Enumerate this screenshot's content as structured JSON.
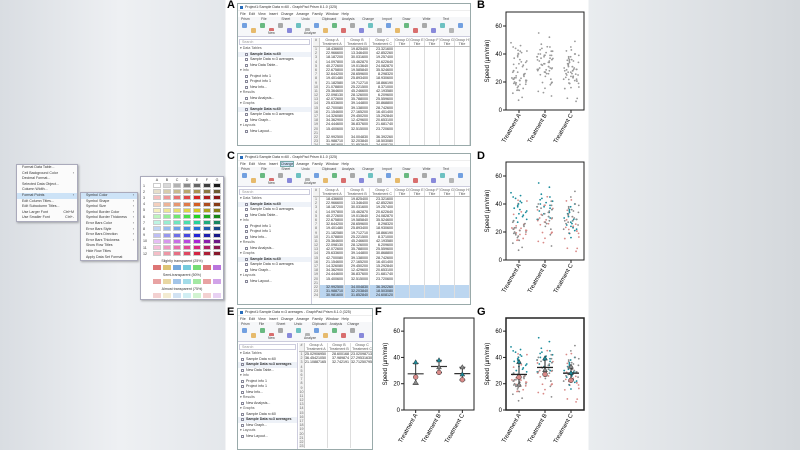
{
  "panel_labels": [
    "A",
    "B",
    "C",
    "D",
    "E",
    "F",
    "G"
  ],
  "windows": [
    {
      "id": "A",
      "title": "Project1:Sample Data n=60 - GraphPad Prism 8.1.0 (325)",
      "menu": [
        "File",
        "Edit",
        "View",
        "Insert",
        "Change",
        "Arrange",
        "Family",
        "Window",
        "Help"
      ],
      "ribbon": [
        "Prism",
        "File",
        "Sheet",
        "Undo",
        "Clipboard",
        "Analysis",
        "Change",
        "Import",
        "Draw",
        "Write",
        "Text"
      ],
      "ribbon_buttons": [
        "New",
        "Analyze"
      ],
      "search_placeholder": "Search",
      "nav": [
        {
          "title": "Data Tables",
          "items": [
            {
              "label": "Sample Data n=60",
              "bold": true
            },
            {
              "label": "Sample Data n=3 averages"
            },
            {
              "label": "New Data Table..."
            }
          ]
        },
        {
          "title": "Info",
          "items": [
            {
              "label": "Project info 1"
            },
            {
              "label": "Project info 1"
            },
            {
              "label": "New Info..."
            }
          ]
        },
        {
          "title": "Results",
          "items": [
            {
              "label": "New Analysis..."
            }
          ]
        },
        {
          "title": "Graphs",
          "items": [
            {
              "label": "Sample Data n=60",
              "bold": true
            },
            {
              "label": "Sample Data n=3 averages"
            },
            {
              "label": "New Graph..."
            }
          ]
        },
        {
          "title": "Layouts",
          "items": [
            {
              "label": "New Layout..."
            }
          ]
        }
      ],
      "columns": [
        {
          "group": "Group A",
          "sub": "Treatment A"
        },
        {
          "group": "Group B",
          "sub": "Treatment B"
        },
        {
          "group": "Group C",
          "sub": "Treatment C"
        },
        {
          "group": "Group D",
          "sub": "Title"
        },
        {
          "group": "Group E",
          "sub": "Title"
        },
        {
          "group": "Group F",
          "sub": "Title"
        },
        {
          "group": "Group G",
          "sub": "Title"
        },
        {
          "group": "Group H",
          "sub": "Title"
        }
      ],
      "rows": [
        [
          "18.436600",
          "19.825400",
          "23.321600"
        ],
        [
          "22.966600",
          "13.346400",
          "42.852260"
        ],
        [
          "18.187200",
          "30.031600",
          "19.257400"
        ],
        [
          "14.097800",
          "15.462870",
          "20.622640"
        ],
        [
          "40.272600",
          "19.013640",
          "24.082870"
        ],
        [
          "22.675800",
          "19.585840",
          "35.524600"
        ],
        [
          "32.644200",
          "28.659600",
          "8.298320"
        ],
        [
          "19.401480",
          "25.893400",
          "18.930600"
        ],
        [
          "21.182580",
          "19.712710",
          "18.866190"
        ],
        [
          "21.078800",
          "25.221500",
          "8.371000"
        ],
        [
          "25.364600",
          "45.246600",
          "42.193580"
        ],
        [
          "22.098130",
          "28.126000",
          "6.209600"
        ],
        [
          "42.072600",
          "35.788000",
          "25.559600"
        ],
        [
          "25.633600",
          "39.144800",
          "30.868800"
        ],
        [
          "42.700080",
          "39.138000",
          "28.742600"
        ],
        [
          "21.154600",
          "27.165200",
          "16.401400"
        ],
        [
          "14.326080",
          "29.450200",
          "15.292840"
        ],
        [
          "34.362900",
          "12.429600",
          "20.653100"
        ],
        [
          "24.444600",
          "36.837600",
          "21.681740"
        ],
        [
          "15.400600",
          "32.515000",
          "23.720600"
        ],
        [
          "",
          "",
          ""
        ],
        [
          "32.992500",
          "34.004830",
          "36.392260"
        ],
        [
          "31.988710",
          "32.203840",
          "18.503080"
        ],
        [
          "30.981600",
          "31.852840",
          "24.608120"
        ]
      ],
      "selected_rows": []
    },
    {
      "id": "C",
      "title": "Project1:Sample Data n=60 - GraphPad Prism 8.1.0 (325)",
      "menu": [
        "File",
        "Edit",
        "View",
        "Insert",
        "Change",
        "Arrange",
        "Family",
        "Window",
        "Help"
      ],
      "ribbon": [
        "Prism",
        "File",
        "Sheet",
        "Undo",
        "Clipboard",
        "Analysis",
        "Change",
        "Import",
        "Draw",
        "Write",
        "Text"
      ],
      "ribbon_buttons": [
        "New",
        "Analyze"
      ],
      "search_placeholder": "Search",
      "nav": [
        {
          "title": "Data Tables",
          "items": [
            {
              "label": "Sample Data n=60",
              "bold": true
            },
            {
              "label": "Sample Data n=3 averages"
            },
            {
              "label": "New Data Table..."
            }
          ]
        },
        {
          "title": "Info",
          "items": [
            {
              "label": "Project info 1"
            },
            {
              "label": "Project info 1"
            },
            {
              "label": "New Info..."
            }
          ]
        },
        {
          "title": "Results",
          "items": [
            {
              "label": "New Analysis..."
            }
          ]
        },
        {
          "title": "Graphs",
          "items": [
            {
              "label": "Sample Data n=60",
              "bold": true
            },
            {
              "label": "Sample Data n=3 averages"
            },
            {
              "label": "New Graph..."
            }
          ]
        },
        {
          "title": "Layouts",
          "items": [
            {
              "label": "New Layout..."
            }
          ]
        }
      ],
      "columns": [
        {
          "group": "Group A",
          "sub": "Treatment A"
        },
        {
          "group": "Group B",
          "sub": "Treatment B"
        },
        {
          "group": "Group C",
          "sub": "Treatment C"
        },
        {
          "group": "Group D",
          "sub": "Title"
        },
        {
          "group": "Group E",
          "sub": "Title"
        },
        {
          "group": "Group F",
          "sub": "Title"
        },
        {
          "group": "Group G",
          "sub": "Title"
        },
        {
          "group": "Group H",
          "sub": "Title"
        }
      ],
      "rows": [
        [
          "18.436600",
          "19.825400",
          "23.321600"
        ],
        [
          "22.966600",
          "13.346400",
          "42.852260"
        ],
        [
          "18.187200",
          "30.031600",
          "19.257400"
        ],
        [
          "14.097800",
          "15.462870",
          "20.622640"
        ],
        [
          "40.272600",
          "19.013640",
          "24.082870"
        ],
        [
          "22.675800",
          "19.585840",
          "35.524600"
        ],
        [
          "32.644200",
          "28.659600",
          "8.298320"
        ],
        [
          "19.401480",
          "25.893400",
          "18.930600"
        ],
        [
          "21.182580",
          "19.712710",
          "18.866190"
        ],
        [
          "21.078800",
          "25.221500",
          "8.371000"
        ],
        [
          "25.364600",
          "45.246600",
          "42.193580"
        ],
        [
          "22.098130",
          "28.126000",
          "6.209600"
        ],
        [
          "42.072600",
          "35.788000",
          "25.559600"
        ],
        [
          "25.633600",
          "39.144800",
          "30.868800"
        ],
        [
          "42.700080",
          "39.138000",
          "28.742600"
        ],
        [
          "21.154600",
          "27.165200",
          "16.401400"
        ],
        [
          "14.326080",
          "29.450200",
          "15.292840"
        ],
        [
          "34.362900",
          "12.429600",
          "20.653100"
        ],
        [
          "24.444600",
          "36.837600",
          "21.681740"
        ],
        [
          "15.400600",
          "32.515000",
          "23.720600"
        ],
        [
          "",
          "",
          ""
        ],
        [
          "32.992500",
          "34.004830",
          "36.392260"
        ],
        [
          "31.988710",
          "32.203840",
          "18.503080"
        ],
        [
          "30.981600",
          "31.852840",
          "24.608120"
        ]
      ],
      "selected_rows": [
        21,
        22,
        23
      ],
      "change_menu": [
        {
          "label": "Format Data Table..."
        },
        {
          "label": "Cell Background Color",
          "arrow": true
        },
        {
          "label": "Decimal Format..."
        },
        {
          "label": "Selected Data Object..."
        },
        {
          "label": "Column Width..."
        },
        {
          "label": "Format Points",
          "arrow": true,
          "highlight": true
        },
        {
          "label": "Edit Column Titles..."
        },
        {
          "label": "Edit Subcolumn Titles..."
        },
        {
          "label": "Use Larger Font",
          "shortcut": "Ctrl+M"
        },
        {
          "label": "Use Smaller Font",
          "shortcut": "Ctrl+-"
        }
      ],
      "format_points_menu": [
        {
          "label": "Symbol Color",
          "highlight": true
        },
        {
          "label": "Symbol Shape"
        },
        {
          "label": "Symbol Size"
        },
        {
          "label": "Symbol Border Color"
        },
        {
          "label": "Symbol Border Thickness"
        },
        {
          "label": "Error Bars Color"
        },
        {
          "label": "Error Bars Style"
        },
        {
          "label": "Error Bars Direction"
        },
        {
          "label": "Error Bars Thickness"
        },
        {
          "label": "Show Row Titles"
        },
        {
          "label": "Hide Row Titles"
        },
        {
          "label": "Apply Data Set Format"
        }
      ],
      "palette": {
        "columns": [
          "A",
          "B",
          "C",
          "D",
          "E",
          "F",
          "G"
        ],
        "rows": [
          "1",
          "2",
          "3",
          "4",
          "5",
          "6",
          "7",
          "8",
          "9",
          "10",
          "11",
          "12"
        ],
        "slightly_label": "Slightly transparent (25%)",
        "semi_label": "Semi-transparent (50%)",
        "almost_label": "Almost transparent (75%)"
      }
    },
    {
      "id": "E",
      "title": "Project1:Sample Data n=3 averages - GraphPad Prism 8.1.0 (325)",
      "menu": [
        "File",
        "Edit",
        "View",
        "Insert",
        "Change",
        "Arrange",
        "Family",
        "Window",
        "Help"
      ],
      "ribbon": [
        "Prism",
        "File",
        "Sheet",
        "Undo",
        "Clipboard",
        "Analysis",
        "Change"
      ],
      "ribbon_buttons": [
        "New",
        "Analyze"
      ],
      "search_placeholder": "Search",
      "nav": [
        {
          "title": "Data Tables",
          "items": [
            {
              "label": "Sample Data n=60"
            },
            {
              "label": "Sample Data n=3 averages",
              "bold": true
            },
            {
              "label": "New Data Table..."
            }
          ]
        },
        {
          "title": "Info",
          "items": [
            {
              "label": "Project info 1"
            },
            {
              "label": "Project info 1"
            },
            {
              "label": "New Info..."
            }
          ]
        },
        {
          "title": "Results",
          "items": [
            {
              "label": "New Analysis..."
            }
          ]
        },
        {
          "title": "Graphs",
          "items": [
            {
              "label": "Sample Data n=60"
            },
            {
              "label": "Sample Data n=3 averages",
              "bold": true
            },
            {
              "label": "New Graph..."
            }
          ]
        },
        {
          "title": "Layouts",
          "items": [
            {
              "label": "New Layout..."
            }
          ]
        }
      ],
      "columns": [
        {
          "group": "Group A",
          "sub": "Treatment A"
        },
        {
          "group": "Group B",
          "sub": "Treatment B"
        },
        {
          "group": "Group C",
          "sub": "Treatment C"
        }
      ],
      "rows": [
        [
          "25.02906950",
          "28.600168",
          "23.02098713"
        ],
        [
          "36.45421050",
          "37.989874",
          "27.29531630"
        ],
        [
          "21.10887165",
          "32.742191",
          "32.71250795"
        ],
        [
          "",
          "",
          ""
        ],
        [
          "",
          "",
          ""
        ],
        [
          "",
          "",
          ""
        ],
        [
          "",
          "",
          ""
        ],
        [
          "",
          "",
          ""
        ],
        [
          "",
          "",
          ""
        ],
        [
          "",
          "",
          ""
        ],
        [
          "",
          "",
          ""
        ],
        [
          "",
          "",
          ""
        ],
        [
          "",
          "",
          ""
        ],
        [
          "",
          "",
          ""
        ],
        [
          "",
          "",
          ""
        ],
        [
          "",
          "",
          ""
        ],
        [
          "",
          "",
          ""
        ],
        [
          "",
          "",
          ""
        ],
        [
          "",
          "",
          ""
        ],
        [
          "",
          "",
          ""
        ],
        [
          "",
          "",
          ""
        ],
        [
          "",
          "",
          ""
        ],
        [
          "",
          "",
          ""
        ]
      ],
      "selected_rows": []
    }
  ],
  "replicate_colors": [
    "#d98a88",
    "#1c8c9c",
    "#8c8c8c"
  ],
  "chart_data": [
    {
      "panel": "B",
      "type": "scatter",
      "ylabel": "Speed (µm/min)",
      "ylim": [
        0,
        70
      ],
      "yticks": [
        0,
        20,
        40,
        60
      ],
      "categories": [
        "Treatment A",
        "Treatment B",
        "Treatment C"
      ],
      "colored_by_replicate": false,
      "superplot": false
    },
    {
      "panel": "D",
      "type": "scatter",
      "ylabel": "Speed (µm/min)",
      "ylim": [
        0,
        70
      ],
      "yticks": [
        0,
        20,
        40,
        60
      ],
      "categories": [
        "Treatment A",
        "Treatment B",
        "Treatment C"
      ],
      "colored_by_replicate": true,
      "superplot": false
    },
    {
      "panel": "F",
      "type": "scatter",
      "ylabel": "Speed (µm/min)",
      "ylim": [
        0,
        70
      ],
      "yticks": [
        0,
        20,
        40,
        60
      ],
      "categories": [
        "Treatment A",
        "Treatment B",
        "Treatment C"
      ],
      "replicate_means": [
        [
          25.03,
          36.45,
          21.11
        ],
        [
          28.6,
          37.99,
          32.74
        ],
        [
          23.02,
          27.3,
          32.71
        ]
      ],
      "mean_sd": true
    },
    {
      "panel": "G",
      "type": "scatter",
      "ylabel": "Speed (µm/min)",
      "ylim": [
        0,
        70
      ],
      "yticks": [
        0,
        20,
        40,
        60
      ],
      "categories": [
        "Treatment A",
        "Treatment B",
        "Treatment C"
      ],
      "colored_by_replicate": true,
      "superplot": true
    }
  ],
  "cell_data": {
    "Treatment A": [
      [
        18.4,
        22.9,
        18.2,
        14.1,
        40.3,
        22.7,
        32.6,
        19.4,
        21.2,
        21.1,
        25.4,
        22.1,
        42.1,
        25.6,
        42.7,
        21.2,
        14.3,
        34.4,
        24.4,
        15.4
      ],
      [
        36,
        41,
        38,
        45,
        30,
        33,
        48,
        28,
        39,
        35,
        31,
        44,
        27,
        37,
        42,
        29,
        34,
        40,
        32,
        46
      ],
      [
        20,
        17,
        23,
        9,
        25,
        19,
        14,
        22,
        27,
        18,
        12,
        24,
        21,
        16,
        26,
        7,
        20,
        23,
        19,
        28
      ]
    ],
    "Treatment B": [
      [
        19.8,
        13.3,
        30.0,
        15.5,
        19.1,
        19.6,
        28.7,
        25.9,
        19.7,
        25.2,
        45.2,
        28.1,
        35.8,
        39.1,
        39.1,
        27.1,
        29.5,
        12.4,
        36.8,
        32.5
      ],
      [
        34,
        42,
        55,
        38,
        31,
        44,
        40,
        36,
        47,
        33,
        39,
        52,
        29,
        41,
        37,
        35,
        45,
        30,
        43,
        38
      ],
      [
        28,
        35,
        22,
        40,
        31,
        18,
        36,
        26,
        33,
        10,
        38,
        29,
        34,
        24,
        42,
        30,
        27,
        37,
        32,
        39
      ]
    ],
    "Treatment C": [
      [
        23.3,
        42.9,
        19.3,
        20.6,
        24.1,
        35.5,
        8.3,
        19.0,
        18.9,
        8.4,
        42.2,
        6.2,
        25.6,
        30.9,
        28.7,
        16.4,
        15.3,
        20.7,
        21.8,
        23.7
      ],
      [
        27,
        33,
        21,
        38,
        24,
        30,
        16,
        29,
        35,
        22,
        26,
        40,
        19,
        31,
        28,
        25,
        34,
        23,
        36,
        29
      ],
      [
        30,
        45,
        28,
        38,
        33,
        49,
        25,
        36,
        31,
        40,
        27,
        35,
        22,
        39,
        34,
        29,
        37,
        26,
        32,
        28
      ]
    ]
  }
}
